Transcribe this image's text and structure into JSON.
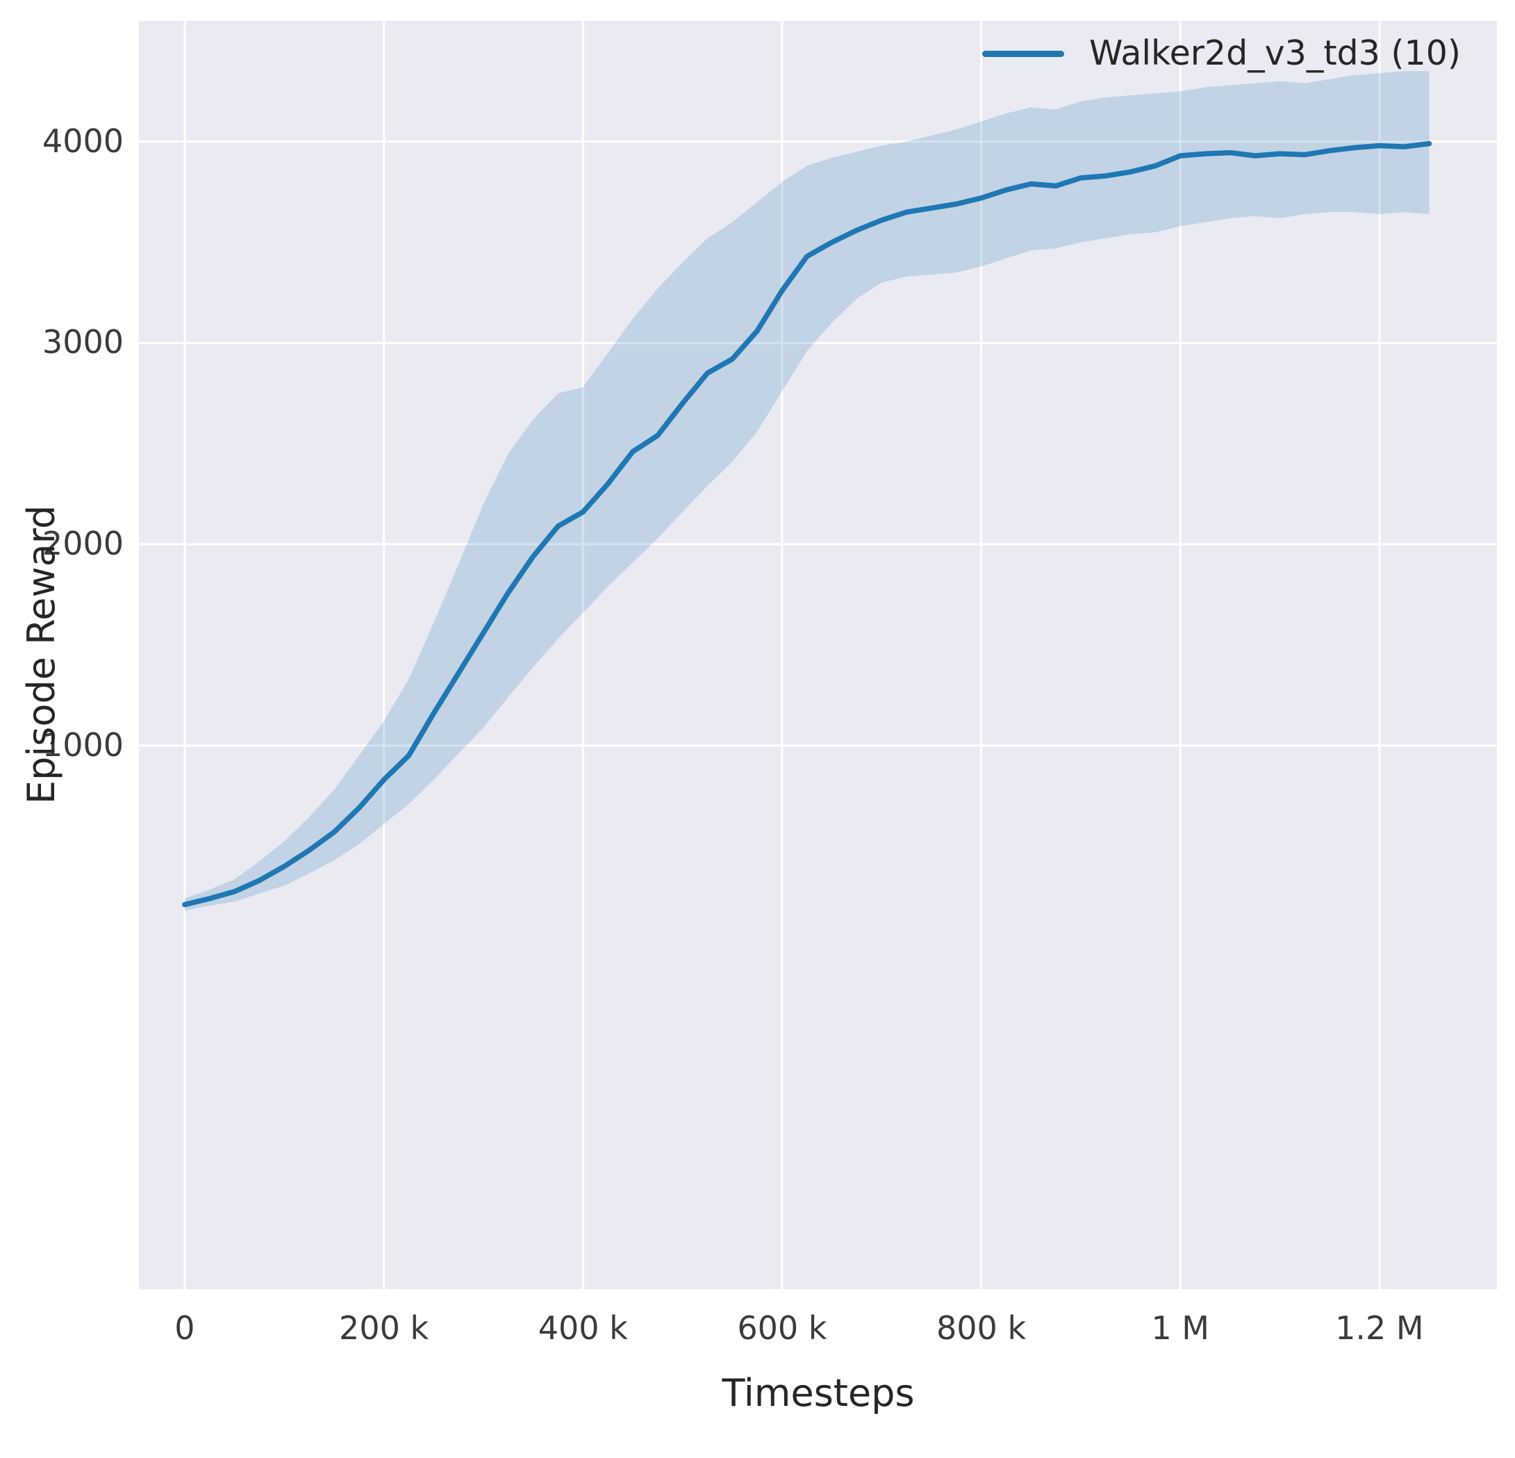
{
  "chart_data": {
    "type": "line",
    "title": "",
    "xlabel": "Timesteps",
    "ylabel": "Episode Reward",
    "grid": true,
    "legend_position": "upper right",
    "xlim": [
      -46000,
      1318000
    ],
    "ylim": [
      -1700,
      4600
    ],
    "x_ticks": [
      {
        "v": 0,
        "label": "0"
      },
      {
        "v": 200000,
        "label": "200 k"
      },
      {
        "v": 400000,
        "label": "400 k"
      },
      {
        "v": 600000,
        "label": "600 k"
      },
      {
        "v": 800000,
        "label": "800 k"
      },
      {
        "v": 1000000,
        "label": "1 M"
      },
      {
        "v": 1200000,
        "label": "1.2 M"
      }
    ],
    "y_ticks": [
      {
        "v": 1000,
        "label": "1000"
      },
      {
        "v": 2000,
        "label": "2000"
      },
      {
        "v": 3000,
        "label": "3000"
      },
      {
        "v": 4000,
        "label": "4000"
      }
    ],
    "colors": {
      "line": "#1f77b4",
      "band_opacity": 0.2,
      "plot_bg": "#eaeaf2",
      "grid": "#ffffff",
      "text": "#262626",
      "tick_text": "#3b3b3b"
    },
    "series": [
      {
        "name": "Walker2d_v3_td3 (10)",
        "color": "#1f77b4",
        "x": [
          0,
          25000,
          50000,
          75000,
          100000,
          125000,
          150000,
          175000,
          200000,
          225000,
          250000,
          275000,
          300000,
          325000,
          350000,
          375000,
          400000,
          425000,
          450000,
          475000,
          500000,
          525000,
          550000,
          575000,
          600000,
          625000,
          650000,
          675000,
          700000,
          725000,
          750000,
          775000,
          800000,
          825000,
          850000,
          875000,
          900000,
          925000,
          950000,
          975000,
          1000000,
          1025000,
          1050000,
          1075000,
          1100000,
          1125000,
          1150000,
          1175000,
          1200000,
          1225000,
          1250000
        ],
        "mean": [
          210,
          240,
          275,
          330,
          400,
          480,
          570,
          690,
          830,
          950,
          1160,
          1360,
          1560,
          1760,
          1940,
          2090,
          2160,
          2300,
          2460,
          2540,
          2700,
          2850,
          2920,
          3060,
          3260,
          3430,
          3500,
          3560,
          3610,
          3650,
          3670,
          3690,
          3720,
          3760,
          3790,
          3780,
          3820,
          3830,
          3850,
          3880,
          3930,
          3940,
          3945,
          3930,
          3940,
          3935,
          3955,
          3970,
          3980,
          3975,
          3990
        ],
        "lower": [
          180,
          205,
          225,
          265,
          305,
          365,
          430,
          510,
          610,
          710,
          830,
          960,
          1090,
          1240,
          1390,
          1530,
          1660,
          1790,
          1910,
          2030,
          2160,
          2290,
          2410,
          2560,
          2760,
          2960,
          3100,
          3220,
          3300,
          3330,
          3340,
          3350,
          3380,
          3420,
          3460,
          3470,
          3500,
          3520,
          3540,
          3550,
          3580,
          3600,
          3620,
          3630,
          3620,
          3640,
          3650,
          3650,
          3640,
          3650,
          3640
        ],
        "upper": [
          240,
          285,
          335,
          425,
          525,
          645,
          780,
          950,
          1120,
          1330,
          1610,
          1900,
          2200,
          2450,
          2620,
          2750,
          2780,
          2950,
          3120,
          3270,
          3400,
          3520,
          3600,
          3700,
          3800,
          3880,
          3920,
          3950,
          3980,
          4000,
          4030,
          4060,
          4100,
          4140,
          4170,
          4160,
          4200,
          4220,
          4230,
          4240,
          4250,
          4270,
          4280,
          4290,
          4300,
          4290,
          4310,
          4330,
          4340,
          4350,
          4350
        ]
      }
    ]
  }
}
